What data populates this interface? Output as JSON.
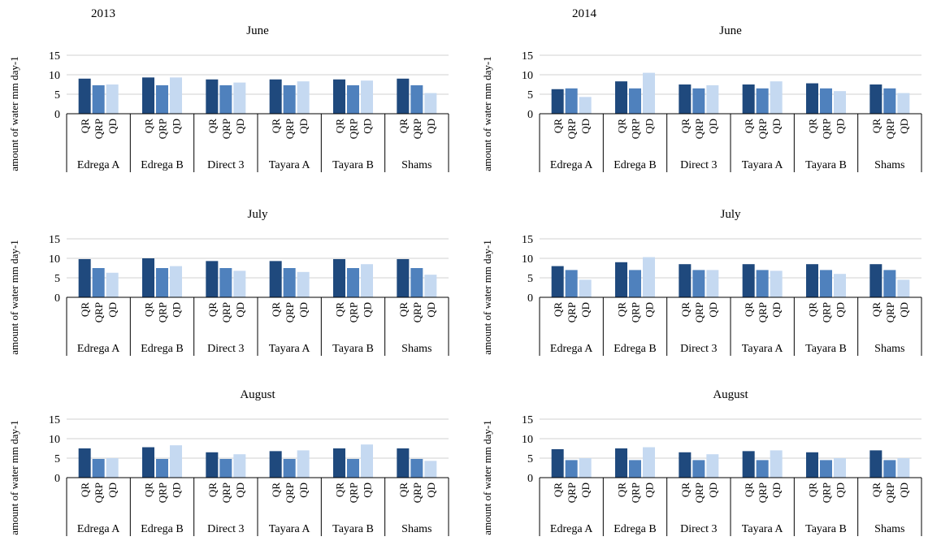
{
  "years": [
    "2013",
    "2014"
  ],
  "colors": {
    "QR": "#1f497d",
    "QRP": "#4f81bd",
    "QD": "#c5d9f1",
    "grid": "#d0d0d0",
    "axis": "#000000"
  },
  "chart_data": [
    {
      "type": "bar",
      "year": "2013",
      "title": "June",
      "ylabel": "amount of water mm day-1",
      "ylim": [
        0,
        15
      ],
      "yticks": [
        0,
        5,
        10,
        15
      ],
      "grid": true,
      "categories": [
        "Edrega A",
        "Edrega B",
        "Direct 3",
        "Tayara A",
        "Tayara B",
        "Shams"
      ],
      "subcategories": [
        "QR",
        "QRP",
        "QD"
      ],
      "series": [
        {
          "name": "QR",
          "values": [
            9,
            9.3,
            8.8,
            8.8,
            8.8,
            9
          ]
        },
        {
          "name": "QRP",
          "values": [
            7.3,
            7.3,
            7.3,
            7.3,
            7.3,
            7.3
          ]
        },
        {
          "name": "QD",
          "values": [
            7.5,
            9.3,
            8,
            8.3,
            8.5,
            5.3
          ]
        }
      ]
    },
    {
      "type": "bar",
      "year": "2014",
      "title": "June",
      "ylabel": "amount of water mm day-1",
      "ylim": [
        0,
        15
      ],
      "yticks": [
        0,
        5,
        10,
        15
      ],
      "grid": true,
      "categories": [
        "Edrega A",
        "Edrega B",
        "Direct 3",
        "Tayara A",
        "Tayara B",
        "Shams"
      ],
      "subcategories": [
        "QR",
        "QRP",
        "QD"
      ],
      "series": [
        {
          "name": "QR",
          "values": [
            6.3,
            8.3,
            7.5,
            7.5,
            7.8,
            7.5
          ]
        },
        {
          "name": "QRP",
          "values": [
            6.5,
            6.5,
            6.5,
            6.5,
            6.5,
            6.5
          ]
        },
        {
          "name": "QD",
          "values": [
            4.3,
            10.5,
            7.3,
            8.3,
            5.8,
            5.3
          ]
        }
      ]
    },
    {
      "type": "bar",
      "year": "2013",
      "title": "July",
      "ylabel": "amount of water mm day-1",
      "ylim": [
        0,
        15
      ],
      "yticks": [
        0,
        5,
        10,
        15
      ],
      "grid": true,
      "categories": [
        "Edrega A",
        "Edrega B",
        "Direct 3",
        "Tayara A",
        "Tayara B",
        "Shams"
      ],
      "subcategories": [
        "QR",
        "QRP",
        "QD"
      ],
      "series": [
        {
          "name": "QR",
          "values": [
            9.8,
            10,
            9.3,
            9.3,
            9.8,
            9.8
          ]
        },
        {
          "name": "QRP",
          "values": [
            7.5,
            7.5,
            7.5,
            7.5,
            7.5,
            7.5
          ]
        },
        {
          "name": "QD",
          "values": [
            6.3,
            8,
            6.8,
            6.5,
            8.5,
            5.8
          ]
        }
      ]
    },
    {
      "type": "bar",
      "year": "2014",
      "title": "July",
      "ylabel": "amount of water mm day-1",
      "ylim": [
        0,
        15
      ],
      "yticks": [
        0,
        5,
        10,
        15
      ],
      "grid": true,
      "categories": [
        "Edrega A",
        "Edrega B",
        "Direct 3",
        "Tayara A",
        "Tayara B",
        "Shams"
      ],
      "subcategories": [
        "QR",
        "QRP",
        "QD"
      ],
      "series": [
        {
          "name": "QR",
          "values": [
            8,
            9,
            8.5,
            8.5,
            8.5,
            8.5
          ]
        },
        {
          "name": "QRP",
          "values": [
            7,
            7,
            7,
            7,
            7,
            7
          ]
        },
        {
          "name": "QD",
          "values": [
            4.5,
            10.3,
            7,
            6.8,
            6,
            4.5
          ]
        }
      ]
    },
    {
      "type": "bar",
      "year": "2013",
      "title": "August",
      "ylabel": "amount of water mm day-1",
      "ylim": [
        0,
        15
      ],
      "yticks": [
        0,
        5,
        10,
        15
      ],
      "grid": true,
      "categories": [
        "Edrega A",
        "Edrega B",
        "Direct 3",
        "Tayara A",
        "Tayara B",
        "Shams"
      ],
      "subcategories": [
        "QR",
        "QRP",
        "QD"
      ],
      "series": [
        {
          "name": "QR",
          "values": [
            7.5,
            7.8,
            6.5,
            6.8,
            7.5,
            7.5
          ]
        },
        {
          "name": "QRP",
          "values": [
            4.8,
            4.8,
            4.8,
            4.8,
            4.8,
            4.8
          ]
        },
        {
          "name": "QD",
          "values": [
            5,
            8.3,
            6,
            7,
            8.5,
            4.3
          ]
        }
      ]
    },
    {
      "type": "bar",
      "year": "2014",
      "title": "August",
      "ylabel": "amount of water mm day-1",
      "ylim": [
        0,
        15
      ],
      "yticks": [
        0,
        5,
        10,
        15
      ],
      "grid": true,
      "categories": [
        "Edrega A",
        "Edrega B",
        "Direct 3",
        "Tayara A",
        "Tayara B",
        "Shams"
      ],
      "subcategories": [
        "QR",
        "QRP",
        "QD"
      ],
      "series": [
        {
          "name": "QR",
          "values": [
            7.3,
            7.5,
            6.5,
            6.8,
            6.5,
            7
          ]
        },
        {
          "name": "QRP",
          "values": [
            4.5,
            4.5,
            4.5,
            4.5,
            4.5,
            4.5
          ]
        },
        {
          "name": "QD",
          "values": [
            5,
            7.8,
            6,
            7,
            5,
            5
          ]
        }
      ]
    }
  ]
}
